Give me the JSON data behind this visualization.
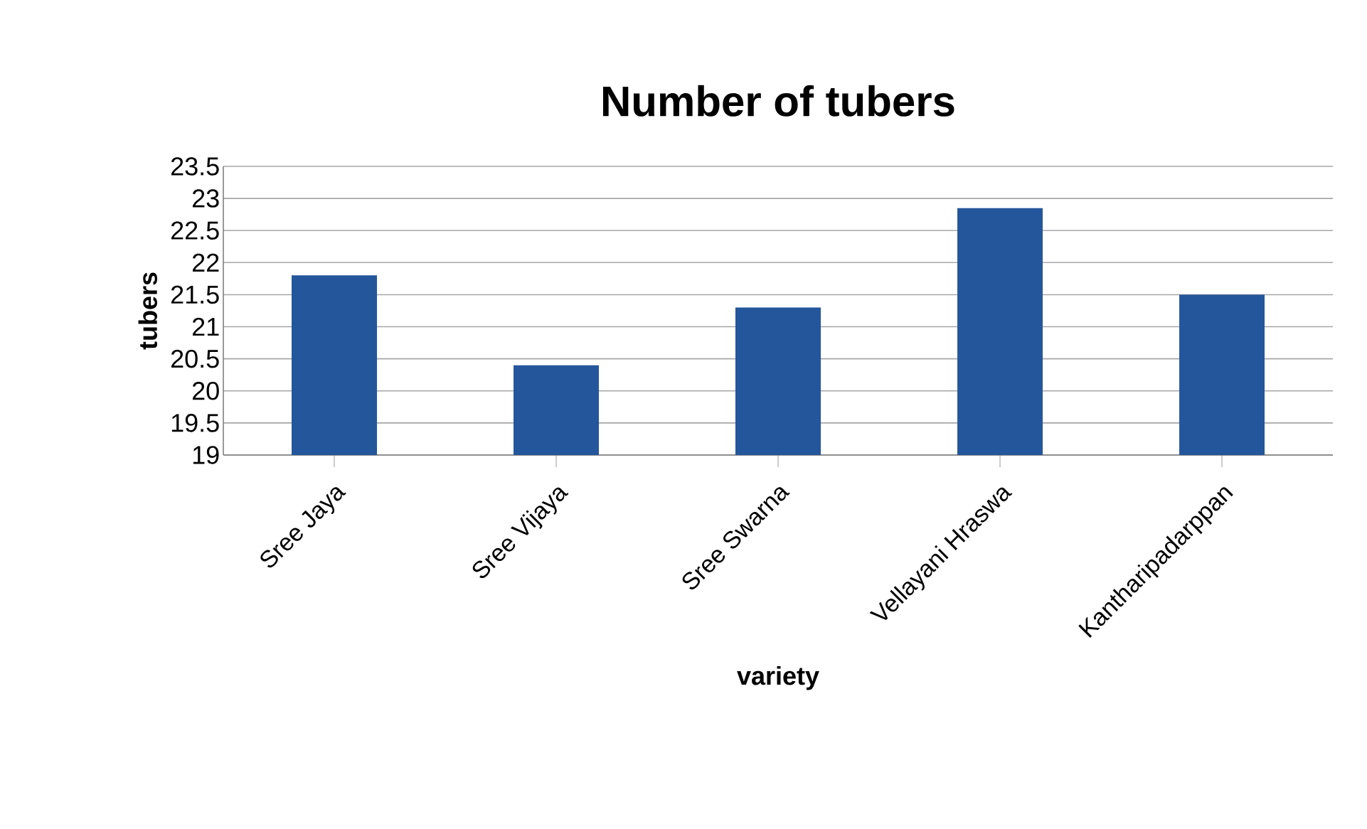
{
  "chart_data": {
    "type": "bar",
    "title": "Number of tubers",
    "xlabel": "variety",
    "ylabel": "tubers",
    "categories": [
      "Sree Jaya",
      "Sree Vijaya",
      "Sree Swarna",
      "Vellayani Hraswa",
      "Kantharipadarppan"
    ],
    "values": [
      21.8,
      20.4,
      21.3,
      22.85,
      21.5
    ],
    "color": "#24569c",
    "ylim": [
      19,
      23.5
    ],
    "yticks": [
      19,
      19.5,
      20,
      20.5,
      21,
      21.5,
      22,
      22.5,
      23,
      23.5
    ],
    "grid": "y"
  }
}
